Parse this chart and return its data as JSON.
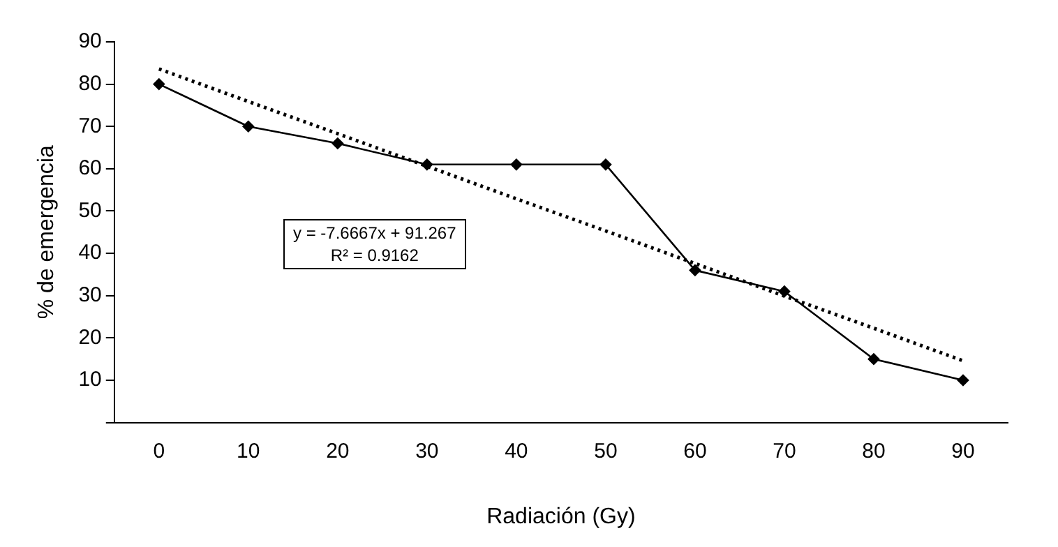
{
  "chart_data": {
    "type": "line",
    "xlabel": "Radiación (Gy)",
    "ylabel": "% de emergencia",
    "categories": [
      "0",
      "10",
      "20",
      "30",
      "40",
      "50",
      "60",
      "70",
      "80",
      "90"
    ],
    "series": [
      {
        "color": "#000000",
        "values": [
          80,
          70,
          66,
          61,
          61,
          61,
          36,
          31,
          15,
          10
        ],
        "marker": "diamond",
        "line_style": "solid"
      },
      {
        "type": "line",
        "color": "#000000",
        "values": [
          83.6,
          75.9,
          68.3,
          60.6,
          52.9,
          45.3,
          37.6,
          29.9,
          22.3,
          14.6
        ],
        "marker": "none",
        "line_style": "dotted"
      }
    ],
    "ylim": [
      0,
      90
    ],
    "yticks": [
      {
        "value": 0,
        "label": null
      },
      10,
      20,
      30,
      40,
      50,
      60,
      70,
      80,
      90
    ],
    "grid": false,
    "legend": false,
    "annotations": [
      "y = -7.6667x + 91.267",
      "R² = 0.9162"
    ]
  }
}
